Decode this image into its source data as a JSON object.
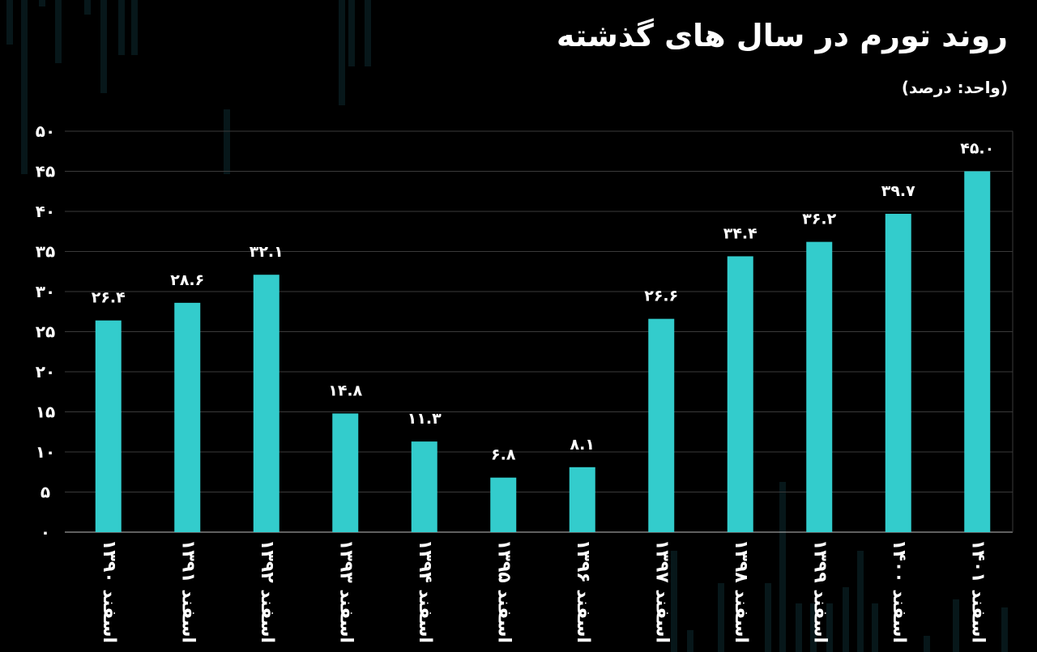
{
  "header": {
    "title": "روند تورم در سال های گذشته",
    "unit": "(واحد: درصد)"
  },
  "colors": {
    "background": "#000000",
    "bar": "#33cccc",
    "grid": "#3a3a3a",
    "text": "#ffffff"
  },
  "chart_data": {
    "type": "bar",
    "title": "روند تورم در سال های گذشته",
    "subtitle": "(واحد: درصد)",
    "categories": [
      "اسفند ۱۳۹۰",
      "اسفند ۱۳۹۱",
      "اسفند ۱۳۹۲",
      "اسفند ۱۳۹۳",
      "اسفند ۱۳۹۴",
      "اسفند ۱۳۹۵",
      "اسفند ۱۳۹۶",
      "اسفند ۱۳۹۷",
      "اسفند ۱۳۹۸",
      "اسفند ۱۳۹۹",
      "اسفند ۱۴۰۰",
      "اسفند ۱۴۰۱"
    ],
    "values": [
      26.4,
      28.6,
      32.1,
      14.8,
      11.3,
      6.8,
      8.1,
      26.6,
      34.4,
      36.2,
      39.7,
      45.0
    ],
    "data_labels": [
      "۲۶.۴",
      "۲۸.۶",
      "۳۲.۱",
      "۱۴.۸",
      "۱۱.۳",
      "۶.۸",
      "۸.۱",
      "۲۶.۶",
      "۳۴.۴",
      "۳۶.۲",
      "۳۹.۷",
      "۴۵.۰"
    ],
    "ylim": [
      0,
      50
    ],
    "yticks": [
      0,
      5,
      10,
      15,
      20,
      25,
      30,
      35,
      40,
      45,
      50
    ],
    "ytick_labels": [
      "۰",
      "۵",
      "۱۰",
      "۱۵",
      "۲۰",
      "۲۵",
      "۳۰",
      "۳۵",
      "۴۰",
      "۴۵",
      "۵۰"
    ],
    "grid": true,
    "xlabel": "",
    "ylabel": ""
  }
}
